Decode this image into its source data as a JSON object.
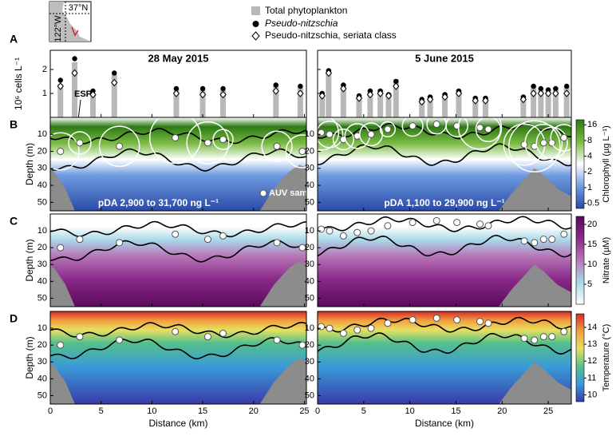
{
  "chart_data": [
    {
      "type": "bar",
      "panel_label": "A",
      "y_label": "10⁶ cells L⁻¹",
      "ylim": [
        0,
        2.8
      ],
      "yticks": [
        1,
        2
      ],
      "plots": [
        {
          "title": "28 May 2015",
          "xlim": [
            0,
            25.2
          ],
          "x": [
            1.0,
            2.4,
            4.2,
            6.3,
            12.4,
            15.0,
            17.0,
            22.2,
            24.6
          ],
          "series": [
            {
              "name": "Total phytoplankton",
              "color": "#b8b8b8",
              "values": [
                1.4,
                2.3,
                1.0,
                1.8,
                1.2,
                1.15,
                1.15,
                1.4,
                1.3
              ]
            },
            {
              "name": "Pseudo-nitzschia",
              "color": "#000000",
              "values": [
                1.55,
                2.45,
                1.1,
                1.85,
                1.2,
                1.2,
                1.2,
                1.35,
                1.3
              ]
            },
            {
              "name": "Pseudo-nitzschia, seriata class",
              "color": "#ffffff",
              "values": [
                1.3,
                1.85,
                0.95,
                1.45,
                1.0,
                0.95,
                0.95,
                1.1,
                1.0
              ]
            }
          ]
        },
        {
          "title": "5 June 2015",
          "xlim": [
            0,
            27.5
          ],
          "x": [
            0.5,
            1.2,
            2.8,
            4.5,
            5.7,
            6.8,
            7.7,
            8.5,
            11.3,
            12.2,
            13.8,
            15.3,
            17.1,
            18.2,
            22.3,
            23.4,
            24.2,
            25.0,
            25.8,
            27.0
          ],
          "series": [
            {
              "name": "Total phytoplankton",
              "color": "#b8b8b8",
              "values": [
                1.0,
                2.0,
                1.4,
                0.9,
                1.1,
                1.15,
                1.0,
                1.6,
                0.75,
                0.9,
                1.0,
                1.15,
                0.85,
                0.85,
                0.9,
                1.3,
                1.2,
                1.2,
                1.25,
                1.3
              ]
            },
            {
              "name": "Pseudo-nitzschia",
              "color": "#000000",
              "values": [
                1.0,
                1.95,
                1.35,
                0.9,
                1.1,
                1.1,
                0.95,
                1.5,
                0.75,
                0.85,
                0.95,
                1.1,
                0.8,
                0.8,
                0.85,
                1.3,
                1.2,
                1.15,
                1.2,
                1.3
              ]
            },
            {
              "name": "Pseudo-nitzschia, seriata class",
              "color": "#ffffff",
              "values": [
                0.9,
                1.85,
                1.2,
                0.8,
                0.95,
                1.0,
                0.9,
                1.3,
                0.65,
                0.75,
                0.85,
                1.0,
                0.7,
                0.7,
                0.75,
                1.0,
                1.0,
                1.0,
                1.0,
                1.0
              ]
            }
          ]
        }
      ]
    },
    {
      "type": "section",
      "panel_label": "B",
      "y_label": "Depth (m)",
      "ylim": [
        0,
        55
      ],
      "yticks": [
        10,
        20,
        30,
        40,
        50
      ],
      "sample_label": "AUV sample",
      "esp_label": "ESP",
      "colorbar": {
        "label": "Chlorophyll (µg L⁻¹)",
        "lim": [
          0.4,
          20
        ],
        "log": true,
        "ticks": [
          0.5,
          1,
          2,
          4,
          8,
          16
        ],
        "colors": [
          "#2a4aa8",
          "#6f9ce0",
          "#ffffff",
          "#7cbc45",
          "#2d7a14"
        ]
      },
      "plots": [
        {
          "xlim": [
            0,
            25.2
          ],
          "annotation": "pDA 2,900 to 31,700 ng L⁻¹",
          "samples": {
            "x": [
              1.0,
              2.9,
              6.8,
              12.3,
              15.5,
              17.0,
              22.3,
              24.8
            ],
            "depth": [
              20,
              15,
              17,
              12,
              15,
              13,
              17,
              20
            ],
            "pda": [
              15000,
              4000,
              18000,
              31700,
              20000,
              2900,
              9000,
              11000
            ]
          }
        },
        {
          "xlim": [
            0,
            27.5
          ],
          "annotation": "pDA 1,100 to 29,900 ng L⁻¹",
          "samples": {
            "x": [
              0.4,
              1.3,
              2.8,
              4.3,
              5.8,
              7.6,
              10.3,
              12.9,
              15.1,
              17.6,
              18.5,
              22.4,
              23.5,
              24.5,
              25.4,
              26.7
            ],
            "depth": [
              9,
              10,
              13,
              11,
              10,
              7,
              5,
              4,
              5,
              6,
              7,
              16,
              17,
              15,
              15,
              12
            ],
            "pda": [
              12000,
              6000,
              3000,
              5000,
              4000,
              1100,
              3000,
              2500,
              3500,
              20000,
              5000,
              18000,
              29900,
              14000,
              9000,
              6000
            ]
          }
        }
      ]
    },
    {
      "type": "section",
      "panel_label": "C",
      "y_label": "Depth (m)",
      "ylim": [
        0,
        55
      ],
      "yticks": [
        10,
        20,
        30,
        40,
        50
      ],
      "colorbar": {
        "label": "Nitrate (µM)",
        "lim": [
          0,
          22
        ],
        "log": false,
        "ticks": [
          5,
          10,
          15,
          20
        ],
        "colors": [
          "#ffffff",
          "#a8d8e8",
          "#b878b8",
          "#8a2a8a",
          "#5a0a5a"
        ]
      },
      "plots": [
        {
          "xlim": [
            0,
            25.2
          ]
        },
        {
          "xlim": [
            0,
            27.5
          ]
        }
      ]
    },
    {
      "type": "section",
      "panel_label": "D",
      "y_label": "Depth (m)",
      "x_label": "Distance (km)",
      "ylim": [
        0,
        55
      ],
      "yticks": [
        10,
        20,
        30,
        40,
        50
      ],
      "colorbar": {
        "label": "Temperature (°C)",
        "lim": [
          9.6,
          14.8
        ],
        "log": false,
        "ticks": [
          10,
          11,
          12,
          13,
          14
        ],
        "colors": [
          "#3b3ba8",
          "#3a9ad8",
          "#55c08c",
          "#e8e060",
          "#f2a040",
          "#d42a2a"
        ]
      },
      "plots": [
        {
          "xlim": [
            0,
            25.2
          ],
          "xticks": [
            0,
            5,
            10,
            15,
            20,
            25
          ]
        },
        {
          "xlim": [
            0,
            27.5
          ],
          "xticks": [
            0,
            5,
            10,
            15,
            20,
            25
          ]
        }
      ]
    }
  ],
  "map": {
    "lat": "37°N",
    "lon": "122°W"
  }
}
